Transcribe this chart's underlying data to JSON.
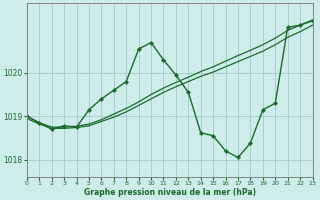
{
  "background_color": "#ceecea",
  "grid_color": "#a8cece",
  "line_color": "#1a6b2a",
  "xlabel": "Graphe pression niveau de la mer (hPa)",
  "xlim": [
    0,
    23
  ],
  "ylim": [
    1017.6,
    1021.6
  ],
  "yticks": [
    1018,
    1019,
    1020
  ],
  "xticks": [
    0,
    1,
    2,
    3,
    4,
    5,
    6,
    7,
    8,
    9,
    10,
    11,
    12,
    13,
    14,
    15,
    16,
    17,
    18,
    19,
    20,
    21,
    22,
    23
  ],
  "series": [
    {
      "x": [
        0,
        1,
        2,
        3,
        4,
        5,
        6,
        7,
        8,
        9,
        10,
        11,
        12,
        13,
        14,
        15,
        16,
        17,
        18,
        19,
        20,
        21,
        22,
        23
      ],
      "y": [
        1018.95,
        1018.82,
        1018.72,
        1018.72,
        1018.74,
        1018.78,
        1018.88,
        1018.98,
        1019.1,
        1019.25,
        1019.4,
        1019.55,
        1019.68,
        1019.8,
        1019.92,
        1020.02,
        1020.14,
        1020.26,
        1020.38,
        1020.5,
        1020.65,
        1020.82,
        1020.95,
        1021.1
      ],
      "marker": false,
      "lw": 0.9
    },
    {
      "x": [
        0,
        1,
        2,
        3,
        4,
        5,
        6,
        7,
        8,
        9,
        10,
        11,
        12,
        13,
        14,
        15,
        16,
        17,
        18,
        19,
        20,
        21,
        22,
        23
      ],
      "y": [
        1019.0,
        1018.85,
        1018.75,
        1018.75,
        1018.77,
        1018.82,
        1018.92,
        1019.05,
        1019.18,
        1019.33,
        1019.5,
        1019.65,
        1019.78,
        1019.9,
        1020.03,
        1020.14,
        1020.27,
        1020.4,
        1020.52,
        1020.65,
        1020.8,
        1020.98,
        1021.1,
        1021.22
      ],
      "marker": false,
      "lw": 0.9
    },
    {
      "x": [
        0,
        1,
        2,
        3,
        4,
        5,
        6,
        7,
        8,
        9,
        10,
        11,
        12,
        13,
        14,
        15,
        16,
        17,
        18,
        19,
        20,
        21,
        22,
        23
      ],
      "y": [
        1019.0,
        1018.85,
        1018.7,
        1018.78,
        1018.75,
        1019.15,
        1019.4,
        1019.6,
        1019.8,
        1020.55,
        1020.7,
        1020.3,
        1019.95,
        1019.55,
        1018.62,
        1018.55,
        1018.2,
        1018.05,
        1018.38,
        1019.15,
        1019.3,
        1021.05,
        1021.1,
        1021.2
      ],
      "marker": true,
      "lw": 1.0
    }
  ]
}
